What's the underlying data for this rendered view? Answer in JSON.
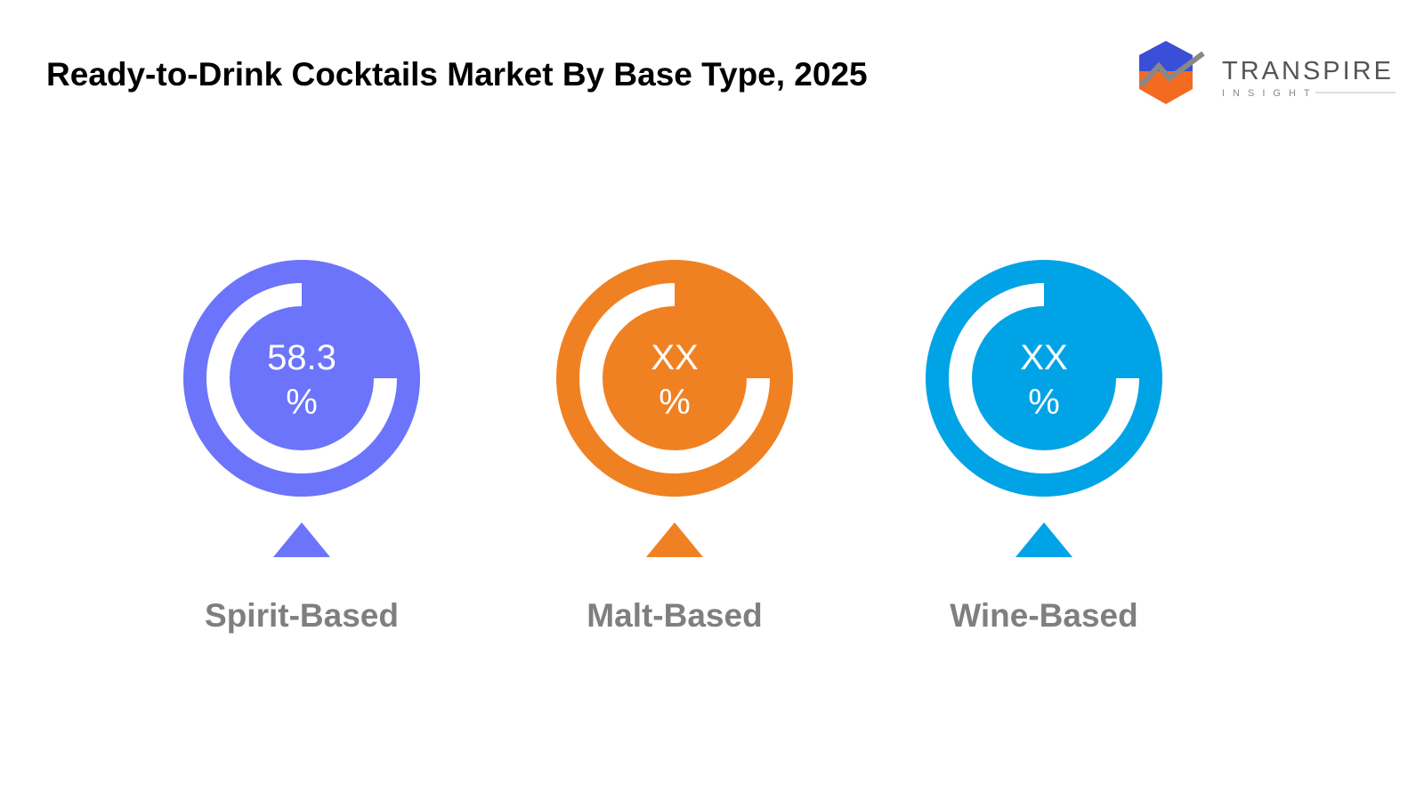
{
  "title": "Ready-to-Drink Cocktails Market By Base Type, 2025",
  "logo": {
    "name": "TRANSPIRE",
    "tagline": "INSIGHT"
  },
  "items": [
    {
      "label": "Spirit-Based",
      "value": "58.3",
      "unit": "%",
      "color": "#6b74fa"
    },
    {
      "label": "Malt-Based",
      "value": "XX",
      "unit": "%",
      "color": "#f08122"
    },
    {
      "label": "Wine-Based",
      "value": "XX",
      "unit": "%",
      "color": "#00a3e6"
    }
  ]
}
